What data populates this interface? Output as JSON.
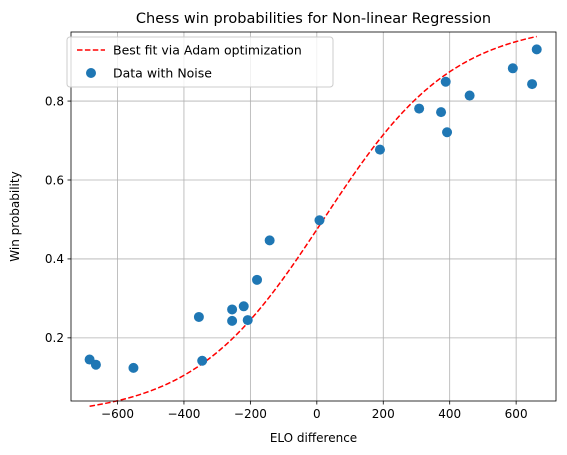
{
  "chart_data": {
    "type": "scatter",
    "title": "Chess win probabilities for Non-linear Regression",
    "xlabel": "ELO difference",
    "ylabel": "Win probability",
    "xlim": [
      -740,
      720
    ],
    "ylim": [
      0.04,
      0.975
    ],
    "xticks": [
      -600,
      -400,
      -200,
      0,
      200,
      400,
      600
    ],
    "yticks": [
      0.2,
      0.4,
      0.6,
      0.8
    ],
    "xtick_labels": [
      "−600",
      "−400",
      "−200",
      "0",
      "200",
      "400",
      "600"
    ],
    "ytick_labels": [
      "0.2",
      "0.4",
      "0.6",
      "0.8"
    ],
    "grid": true,
    "legend_position": "upper-left",
    "series": [
      {
        "name": "Data with Noise",
        "kind": "scatter",
        "color": "#1f77b4",
        "points": [
          [
            -684,
            0.145
          ],
          [
            -665,
            0.132
          ],
          [
            -552,
            0.124
          ],
          [
            -355,
            0.253
          ],
          [
            -345,
            0.142
          ],
          [
            -255,
            0.272
          ],
          [
            -255,
            0.243
          ],
          [
            -220,
            0.28
          ],
          [
            -208,
            0.245
          ],
          [
            -180,
            0.347
          ],
          [
            -142,
            0.447
          ],
          [
            8,
            0.498
          ],
          [
            190,
            0.677
          ],
          [
            308,
            0.781
          ],
          [
            374,
            0.772
          ],
          [
            388,
            0.849
          ],
          [
            392,
            0.721
          ],
          [
            460,
            0.814
          ],
          [
            590,
            0.883
          ],
          [
            648,
            0.843
          ],
          [
            662,
            0.931
          ]
        ]
      },
      {
        "name": "Best fit via Adam optimization",
        "kind": "line",
        "style": "dashed",
        "color": "#ff0000",
        "model": "logistic",
        "params": {
          "midpoint": 20,
          "scale": 196
        },
        "x_range": [
          -684,
          662
        ]
      }
    ]
  }
}
